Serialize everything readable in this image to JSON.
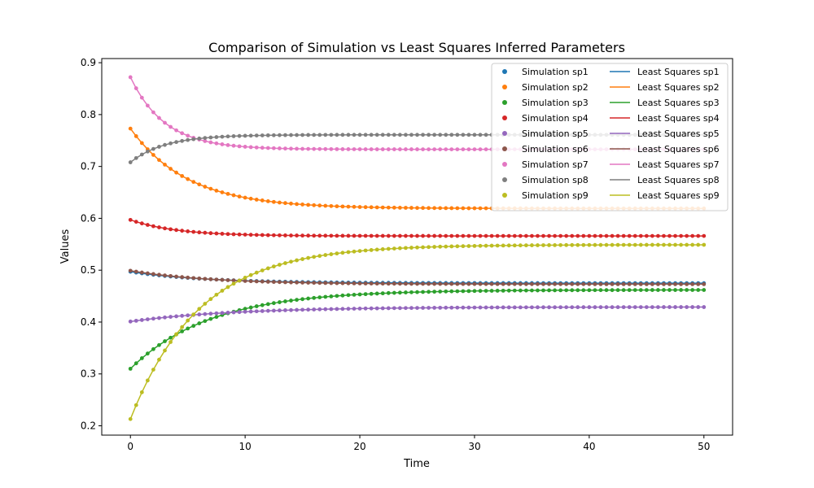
{
  "chart_data": {
    "type": "line",
    "title": "Comparison of Simulation vs Least Squares Inferred Parameters",
    "xlabel": "Time",
    "ylabel": "Values",
    "xlim": [
      -2.5,
      52.5
    ],
    "ylim": [
      0.182,
      0.908
    ],
    "xticks": [
      0,
      10,
      20,
      30,
      40,
      50
    ],
    "yticks": [
      0.2,
      0.3,
      0.4,
      0.5,
      0.6,
      0.7,
      0.8,
      0.9
    ],
    "legend_location": "top-right",
    "legend_columns": 2,
    "grid": false,
    "x_sampling": {
      "start": 0,
      "stop": 50,
      "count": 101
    },
    "series": [
      {
        "id": "sp1",
        "color": "#1f77b4",
        "scatter_name": "Simulation sp1",
        "line_name": "Least Squares sp1",
        "y0": 0.497,
        "y_final": 0.475,
        "time_constant": 6.5
      },
      {
        "id": "sp2",
        "color": "#ff7f0e",
        "scatter_name": "Simulation sp2",
        "line_name": "Least Squares sp2",
        "y0": 0.773,
        "y_final": 0.619,
        "time_constant": 5.0
      },
      {
        "id": "sp3",
        "color": "#2ca02c",
        "scatter_name": "Simulation sp3",
        "line_name": "Least Squares sp3",
        "y0": 0.31,
        "y_final": 0.462,
        "time_constant": 7.0
      },
      {
        "id": "sp4",
        "color": "#d62728",
        "scatter_name": "Simulation sp4",
        "line_name": "Least Squares sp4",
        "y0": 0.597,
        "y_final": 0.566,
        "time_constant": 4.0
      },
      {
        "id": "sp5",
        "color": "#9467bd",
        "scatter_name": "Simulation sp5",
        "line_name": "Least Squares sp5",
        "y0": 0.401,
        "y_final": 0.429,
        "time_constant": 9.0
      },
      {
        "id": "sp6",
        "color": "#8c564b",
        "scatter_name": "Simulation sp6",
        "line_name": "Least Squares sp6",
        "y0": 0.499,
        "y_final": 0.473,
        "time_constant": 7.0
      },
      {
        "id": "sp7",
        "color": "#e377c2",
        "scatter_name": "Simulation sp7",
        "line_name": "Least Squares sp7",
        "y0": 0.872,
        "y_final": 0.733,
        "time_constant": 3.0
      },
      {
        "id": "sp8",
        "color": "#7f7f7f",
        "scatter_name": "Simulation sp8",
        "line_name": "Least Squares sp8",
        "y0": 0.708,
        "y_final": 0.761,
        "time_constant": 3.0
      },
      {
        "id": "sp9",
        "color": "#bcbd22",
        "scatter_name": "Simulation sp9",
        "line_name": "Least Squares sp9",
        "y0": 0.213,
        "y_final": 0.549,
        "time_constant": 6.0
      }
    ]
  }
}
